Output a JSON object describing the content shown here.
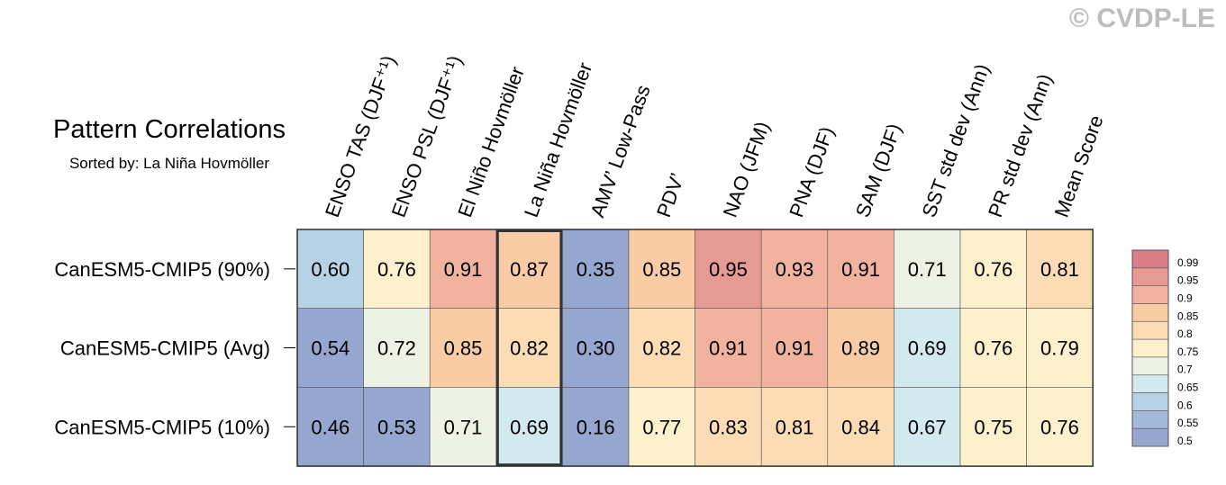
{
  "watermark": "© CVDP-LE",
  "chart_data": {
    "type": "heatmap",
    "title": "Pattern Correlations",
    "subtitle": "Sorted by: La Niña Hovmöller",
    "columns": [
      "ENSO TAS (DJF⁺¹)",
      "ENSO PSL (DJF⁺¹)",
      "El Niño Hovmöller",
      "La Niña Hovmöller",
      "AMV’ Low-Pass",
      "PDV’",
      "NAO (JFM)",
      "PNA (DJF)",
      "SAM (DJF)",
      "SST std dev (Ann)",
      "PR std dev (Ann)",
      "Mean Score"
    ],
    "rows": [
      "CanESM5-CMIP5 (90%)",
      "CanESM5-CMIP5 (Avg)",
      "CanESM5-CMIP5 (10%)"
    ],
    "values": [
      [
        0.6,
        0.76,
        0.91,
        0.87,
        0.35,
        0.85,
        0.95,
        0.93,
        0.91,
        0.71,
        0.76,
        0.81
      ],
      [
        0.54,
        0.72,
        0.85,
        0.82,
        0.3,
        0.82,
        0.91,
        0.91,
        0.89,
        0.69,
        0.76,
        0.79
      ],
      [
        0.46,
        0.53,
        0.71,
        0.69,
        0.16,
        0.77,
        0.83,
        0.81,
        0.84,
        0.67,
        0.75,
        0.76
      ]
    ],
    "cell_labels": [
      [
        "0.60",
        "0.76",
        "0.91",
        "0.87",
        "0.35",
        "0.85",
        "0.95",
        "0.93",
        "0.91",
        "0.71",
        "0.76",
        "0.81"
      ],
      [
        "0.54",
        "0.72",
        "0.85",
        "0.82",
        "0.30",
        "0.82",
        "0.91",
        "0.91",
        "0.89",
        "0.69",
        "0.76",
        "0.79"
      ],
      [
        "0.46",
        "0.53",
        "0.71",
        "0.69",
        "0.16",
        "0.77",
        "0.83",
        "0.81",
        "0.84",
        "0.67",
        "0.75",
        "0.76"
      ]
    ],
    "highlighted_column": "La Niña Hovmöller",
    "colorbar": {
      "labels": [
        "0.99",
        "0.95",
        "0.9",
        "0.85",
        "0.8",
        "0.75",
        "0.7",
        "0.65",
        "0.6",
        "0.55",
        "0.5"
      ],
      "colors": [
        "#d97e87",
        "#e69a94",
        "#f1b3a0",
        "#f9cca6",
        "#fbdcb5",
        "#fdf0cd",
        "#eef2e4",
        "#d3e9f0",
        "#b6d3e6",
        "#a3bad9",
        "#95a6cf"
      ],
      "placement": "right"
    }
  }
}
